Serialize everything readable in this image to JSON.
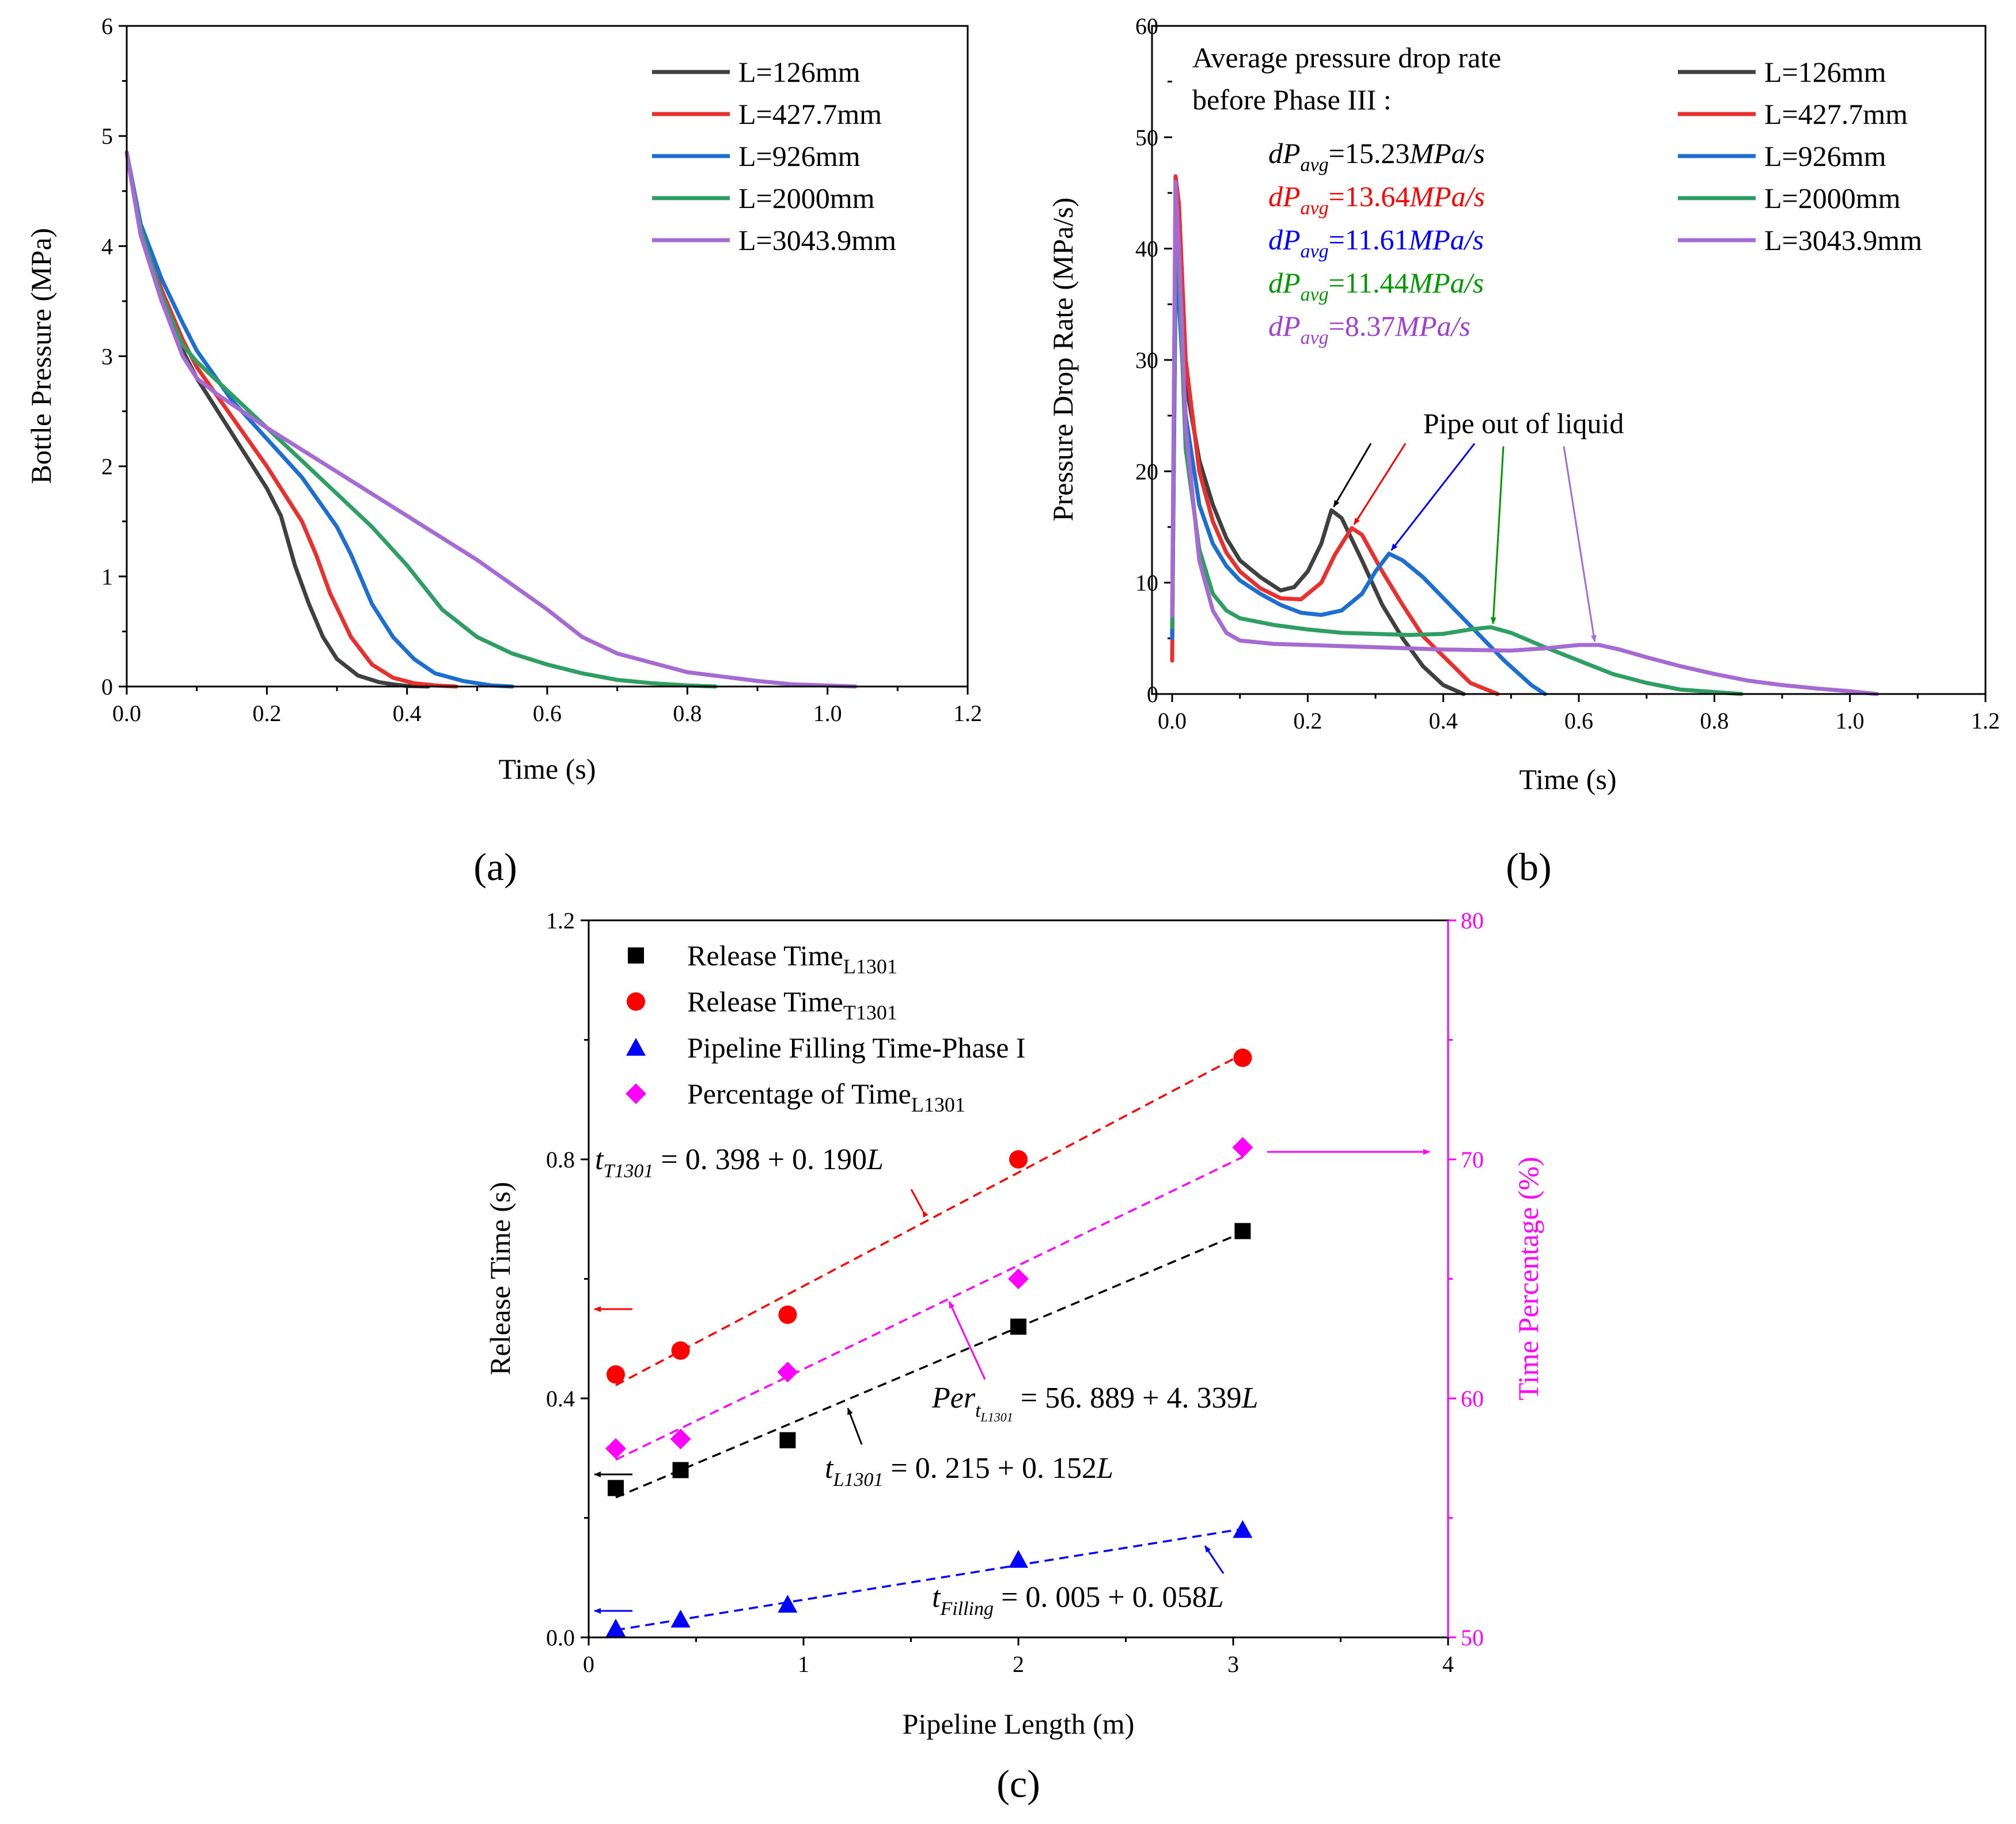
{
  "chart_data": [
    {
      "id": "a",
      "type": "line",
      "panel_label": "(a)",
      "xlabel": "Time (s)",
      "ylabel": "Bottle Pressure (MPa)",
      "xlim": [
        0,
        1.2
      ],
      "ylim": [
        0,
        6
      ],
      "xticks": [
        "0.0",
        "0.2",
        "0.4",
        "0.6",
        "0.8",
        "1.0",
        "1.2"
      ],
      "yticks": [
        "0",
        "1",
        "2",
        "3",
        "4",
        "5",
        "6"
      ],
      "legend": "top-right",
      "series": [
        {
          "name": "L=126mm",
          "color": "#404040",
          "x": [
            0,
            0.02,
            0.05,
            0.08,
            0.1,
            0.15,
            0.2,
            0.22,
            0.24,
            0.26,
            0.28,
            0.3,
            0.33,
            0.36,
            0.38,
            0.4,
            0.43
          ],
          "y": [
            4.85,
            4.1,
            3.5,
            3.05,
            2.8,
            2.3,
            1.8,
            1.55,
            1.1,
            0.75,
            0.45,
            0.25,
            0.1,
            0.04,
            0.02,
            0.005,
            0
          ]
        },
        {
          "name": "L=427.7mm",
          "color": "#e8312f",
          "x": [
            0,
            0.02,
            0.05,
            0.08,
            0.1,
            0.15,
            0.2,
            0.25,
            0.27,
            0.29,
            0.32,
            0.35,
            0.38,
            0.41,
            0.44,
            0.47
          ],
          "y": [
            4.85,
            4.15,
            3.6,
            3.15,
            2.9,
            2.45,
            2.0,
            1.5,
            1.2,
            0.85,
            0.45,
            0.2,
            0.08,
            0.03,
            0.01,
            0
          ]
        },
        {
          "name": "L=926mm",
          "color": "#1c6fd1",
          "x": [
            0,
            0.02,
            0.05,
            0.08,
            0.1,
            0.15,
            0.2,
            0.25,
            0.3,
            0.32,
            0.35,
            0.38,
            0.41,
            0.44,
            0.48,
            0.52,
            0.55
          ],
          "y": [
            4.85,
            4.2,
            3.7,
            3.3,
            3.05,
            2.6,
            2.25,
            1.9,
            1.45,
            1.2,
            0.75,
            0.45,
            0.25,
            0.12,
            0.05,
            0.01,
            0
          ]
        },
        {
          "name": "L=2000mm",
          "color": "#2e9e63",
          "x": [
            0,
            0.02,
            0.05,
            0.08,
            0.1,
            0.15,
            0.2,
            0.25,
            0.3,
            0.35,
            0.4,
            0.45,
            0.5,
            0.55,
            0.6,
            0.65,
            0.7,
            0.75,
            0.8,
            0.84
          ],
          "y": [
            4.85,
            4.15,
            3.55,
            3.1,
            2.95,
            2.65,
            2.35,
            2.05,
            1.75,
            1.45,
            1.1,
            0.7,
            0.45,
            0.3,
            0.2,
            0.12,
            0.06,
            0.03,
            0.01,
            0
          ]
        },
        {
          "name": "L=3043.9mm",
          "color": "#a66bd3",
          "x": [
            0,
            0.02,
            0.05,
            0.08,
            0.1,
            0.13,
            0.2,
            0.3,
            0.4,
            0.5,
            0.6,
            0.65,
            0.7,
            0.8,
            0.9,
            0.95,
            1.04
          ],
          "y": [
            4.85,
            4.1,
            3.5,
            3.0,
            2.8,
            2.65,
            2.35,
            1.95,
            1.55,
            1.15,
            0.7,
            0.45,
            0.3,
            0.13,
            0.05,
            0.02,
            0
          ]
        }
      ]
    },
    {
      "id": "b",
      "type": "line",
      "panel_label": "(b)",
      "xlabel": "Time (s)",
      "ylabel": "Pressure Drop Rate (MPa/s)",
      "xlim": [
        0,
        1.2
      ],
      "ylim": [
        0,
        60
      ],
      "xticks": [
        "0.0",
        "0.2",
        "0.4",
        "0.6",
        "0.8",
        "1.0",
        "1.2"
      ],
      "yticks": [
        "0",
        "10",
        "20",
        "30",
        "40",
        "50",
        "60"
      ],
      "legend": "top-right",
      "annotation_title": [
        "Average pressure drop rate",
        "before Phase III :"
      ],
      "rate_labels": [
        {
          "prefix": "dP",
          "sub": "avg",
          "value": "=15.23",
          "unit": "MPa/s",
          "color": "#000000"
        },
        {
          "prefix": "dP",
          "sub": "avg",
          "value": "=13.64",
          "unit": "MPa/s",
          "color": "#ff0000"
        },
        {
          "prefix": "dP",
          "sub": "avg",
          "value": "=11.61",
          "unit": "MPa/s",
          "color": "#0000ff"
        },
        {
          "prefix": "dP",
          "sub": "avg",
          "value": "=11.44",
          "unit": "MPa/s",
          "color": "#009900"
        },
        {
          "prefix": "dP",
          "sub": "avg",
          "value": "=8.37",
          "unit": "MPa/s",
          "color": "#a040d0"
        }
      ],
      "callout": "Pipe out of liquid",
      "series": [
        {
          "name": "L=126mm",
          "color": "#404040",
          "x": [
            0,
            0.005,
            0.01,
            0.02,
            0.04,
            0.06,
            0.08,
            0.1,
            0.13,
            0.16,
            0.18,
            0.2,
            0.22,
            0.235,
            0.25,
            0.28,
            0.31,
            0.34,
            0.37,
            0.4,
            0.43
          ],
          "y": [
            5,
            39,
            37,
            28,
            21,
            17,
            14,
            12,
            10.5,
            9.3,
            9.6,
            11,
            13.5,
            16.5,
            15.8,
            12,
            8,
            5,
            2.5,
            0.8,
            0
          ]
        },
        {
          "name": "L=427.7mm",
          "color": "#e8312f",
          "x": [
            0,
            0.005,
            0.01,
            0.02,
            0.04,
            0.06,
            0.08,
            0.1,
            0.13,
            0.16,
            0.19,
            0.22,
            0.24,
            0.265,
            0.28,
            0.31,
            0.34,
            0.37,
            0.41,
            0.44,
            0.48
          ],
          "y": [
            3,
            46.5,
            44,
            30,
            20,
            15.5,
            12.7,
            11,
            9.5,
            8.6,
            8.5,
            10,
            12.5,
            14.9,
            14.3,
            11,
            8,
            5.2,
            2.8,
            1,
            0
          ]
        },
        {
          "name": "L=926mm",
          "color": "#1c6fd1",
          "x": [
            0,
            0.005,
            0.01,
            0.02,
            0.04,
            0.06,
            0.08,
            0.1,
            0.13,
            0.16,
            0.19,
            0.22,
            0.25,
            0.28,
            0.3,
            0.32,
            0.34,
            0.37,
            0.41,
            0.45,
            0.49,
            0.53,
            0.55
          ],
          "y": [
            5,
            37,
            35,
            25,
            17,
            13.5,
            11.5,
            10.2,
            9,
            8,
            7.3,
            7.1,
            7.5,
            9,
            11,
            12.6,
            12,
            10.5,
            8,
            5.5,
            3,
            0.8,
            0
          ]
        },
        {
          "name": "L=2000mm",
          "color": "#2e9e63",
          "x": [
            0,
            0.005,
            0.01,
            0.02,
            0.04,
            0.06,
            0.08,
            0.1,
            0.15,
            0.2,
            0.25,
            0.3,
            0.35,
            0.4,
            0.44,
            0.47,
            0.5,
            0.55,
            0.6,
            0.65,
            0.7,
            0.75,
            0.84
          ],
          "y": [
            6,
            44,
            38,
            22,
            13,
            9,
            7.5,
            6.8,
            6.2,
            5.8,
            5.5,
            5.4,
            5.3,
            5.4,
            5.8,
            6,
            5.5,
            4.2,
            3,
            1.8,
            1,
            0.4,
            0
          ]
        },
        {
          "name": "L=3043.9mm",
          "color": "#a66bd3",
          "x": [
            0,
            0.005,
            0.01,
            0.02,
            0.04,
            0.06,
            0.08,
            0.1,
            0.15,
            0.2,
            0.25,
            0.3,
            0.4,
            0.5,
            0.55,
            0.6,
            0.63,
            0.66,
            0.7,
            0.75,
            0.8,
            0.85,
            0.9,
            0.95,
            1.0,
            1.04
          ],
          "y": [
            7,
            46,
            40,
            24,
            12,
            7.5,
            5.5,
            4.8,
            4.5,
            4.4,
            4.3,
            4.2,
            4.0,
            3.9,
            4.1,
            4.4,
            4.4,
            4.0,
            3.3,
            2.5,
            1.8,
            1.2,
            0.8,
            0.5,
            0.25,
            0
          ]
        }
      ]
    },
    {
      "id": "c",
      "type": "scatter",
      "panel_label": "(c)",
      "xlabel": "Pipeline Length (m)",
      "ylabel": "Release Time (s)",
      "ylabel_right": "Time Percentage (%)",
      "xlim": [
        0,
        4
      ],
      "ylim": [
        0,
        1.2
      ],
      "ylim_right": [
        50,
        80
      ],
      "xticks": [
        "0",
        "1",
        "2",
        "3",
        "4"
      ],
      "yticks": [
        "0.0",
        "0.4",
        "0.8",
        "1.2"
      ],
      "yticks_right": [
        "50",
        "60",
        "70",
        "80"
      ],
      "legend": "top-left",
      "series": [
        {
          "name": "Release Time",
          "sub": "L1301",
          "marker": "square",
          "color": "#000000",
          "axis": "left",
          "x": [
            0.126,
            0.4277,
            0.926,
            2.0,
            3.0439
          ],
          "y": [
            0.25,
            0.28,
            0.33,
            0.52,
            0.68
          ],
          "fit": {
            "a": 0.215,
            "b": 0.152
          }
        },
        {
          "name": "Release Time",
          "sub": "T1301",
          "marker": "circle",
          "color": "#ff0000",
          "axis": "left",
          "x": [
            0.126,
            0.4277,
            0.926,
            2.0,
            3.0439
          ],
          "y": [
            0.44,
            0.48,
            0.54,
            0.8,
            0.97
          ],
          "fit": {
            "a": 0.398,
            "b": 0.19
          }
        },
        {
          "name": "Pipeline Filling Time-Phase I",
          "sub": "",
          "marker": "triangle",
          "color": "#0000ff",
          "axis": "left",
          "x": [
            0.126,
            0.4277,
            0.926,
            2.0,
            3.0439
          ],
          "y": [
            0.015,
            0.03,
            0.055,
            0.13,
            0.18
          ],
          "fit": {
            "a": 0.005,
            "b": 0.058
          }
        },
        {
          "name": "Percentage of Time",
          "sub": "L1301",
          "marker": "diamond",
          "color": "#ff00ff",
          "axis": "right",
          "x": [
            0.126,
            0.4277,
            0.926,
            2.0,
            3.0439
          ],
          "y": [
            57.9,
            58.3,
            61.1,
            65.0,
            70.5
          ],
          "fit": {
            "a": 56.889,
            "b": 4.339
          }
        }
      ],
      "equations": {
        "t1301": {
          "var": "t",
          "sub": "T1301",
          "rhs": " = 0. 398 + 0. 190",
          "L": "L"
        },
        "per": {
          "var": "Per",
          "sub_t": "t",
          "sub_sub": "L1301",
          "rhs": " = 56. 889 + 4. 339",
          "L": "L"
        },
        "l1301": {
          "var": "t",
          "sub": "L1301",
          "rhs": " = 0. 215 + 0. 152",
          "L": "L"
        },
        "filling": {
          "var": "t",
          "sub": "Filling",
          "rhs": " = 0. 005 + 0. 058",
          "L": "L"
        }
      }
    }
  ]
}
